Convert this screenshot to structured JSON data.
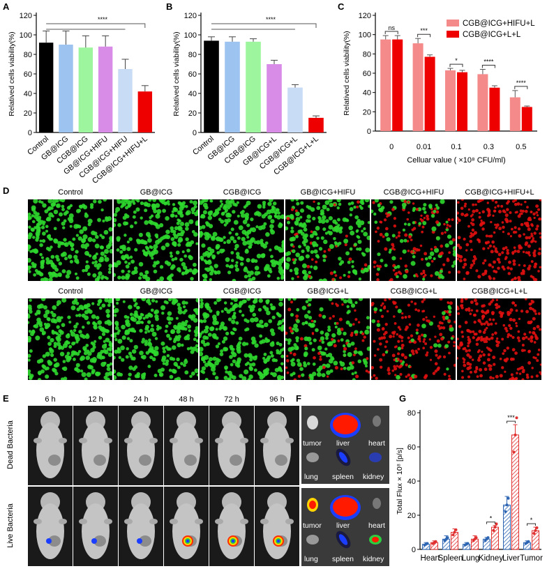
{
  "panel_labels": {
    "a": "A",
    "b": "B",
    "c": "C",
    "d": "D",
    "e": "E",
    "f": "F",
    "g": "G"
  },
  "chart_data": [
    {
      "id": "A",
      "type": "bar",
      "ylabel": "Relatived cells viability(%)",
      "ylim": [
        0,
        120
      ],
      "yticks": [
        "0",
        "20",
        "40",
        "60",
        "80",
        "100",
        "120"
      ],
      "categories": [
        "Control",
        "GB@ICG",
        "CGB@ICG",
        "GB@ICG+HIFU",
        "CGB@ICG+HIFU",
        "CGB@ICG+HIFU+L"
      ],
      "values": [
        92,
        90,
        87,
        88,
        65,
        42
      ],
      "errors": [
        12,
        14,
        12,
        11,
        10,
        6
      ],
      "colors": [
        "#000000",
        "#9dc3f0",
        "#9df59d",
        "#d98be8",
        "#c8dcf5",
        "#ee0000"
      ],
      "significance": {
        "label": "****",
        "from": 0,
        "to": 5
      }
    },
    {
      "id": "B",
      "type": "bar",
      "ylabel": "Relatived cells viability(%)",
      "ylim": [
        0,
        120
      ],
      "yticks": [
        "0",
        "20",
        "40",
        "60",
        "80",
        "100",
        "120"
      ],
      "categories": [
        "Control",
        "GB@ICG",
        "CGB@ICG",
        "GB@ICG+L",
        "CGB@ICG+L",
        "CGB@ICG+L+L"
      ],
      "values": [
        94,
        93,
        93,
        70,
        46,
        15
      ],
      "errors": [
        4,
        5,
        3,
        4,
        3,
        2
      ],
      "colors": [
        "#000000",
        "#9dc3f0",
        "#9df59d",
        "#d98be8",
        "#c8dcf5",
        "#ee0000"
      ],
      "significance": {
        "label": "****",
        "from": 0,
        "to": 5
      }
    },
    {
      "id": "C",
      "type": "bar",
      "ylabel": "Relatived cells viability(%)",
      "xlabel": "Celluar value ( ×10⁸ CFU/ml)",
      "ylim": [
        0,
        120
      ],
      "yticks": [
        "0",
        "20",
        "40",
        "60",
        "80",
        "100",
        "120"
      ],
      "categories": [
        "0",
        "0.01",
        "0.1",
        "0.3",
        "0.5"
      ],
      "series": [
        {
          "name": "CGB@ICG+HIFU+L",
          "color": "#f48a8a",
          "values": [
            95,
            91,
            63,
            59,
            35
          ],
          "errors": [
            4,
            5,
            2,
            5,
            7
          ]
        },
        {
          "name": "CGB@ICG+L+L",
          "color": "#ee0000",
          "values": [
            95,
            77,
            61,
            45,
            25
          ],
          "errors": [
            4,
            2,
            2,
            2,
            1
          ]
        }
      ],
      "significance": [
        "ns",
        "***",
        "*",
        "****",
        "****"
      ]
    },
    {
      "id": "G",
      "type": "bar",
      "ylabel": "Total Flux × 10⁸ [p/s]",
      "ylim": [
        0,
        80
      ],
      "yticks": [
        "0",
        "20",
        "40",
        "60",
        "80"
      ],
      "categories": [
        "Heart",
        "Spleen",
        "Lung",
        "Kidney",
        "Liver",
        "Tumor"
      ],
      "series": [
        {
          "color": "#2f66b3",
          "values": [
            3,
            6,
            3,
            6,
            26,
            4
          ],
          "errors": [
            1,
            2,
            1,
            1,
            5,
            1
          ]
        },
        {
          "color": "#e03030",
          "values": [
            4,
            10,
            6,
            13,
            67,
            11
          ],
          "errors": [
            1,
            2,
            2,
            1,
            6,
            2
          ]
        }
      ],
      "significance": [
        "",
        "",
        "",
        "*",
        "***",
        "*"
      ]
    }
  ],
  "panel_d": {
    "row1_labels": [
      "Control",
      "GB@ICG",
      "CGB@ICG",
      "GB@ICG+HIFU",
      "CGB@ICG+HIFU",
      "CGB@ICG+HIFU+L"
    ],
    "row2_labels": [
      "Control",
      "GB@ICG",
      "CGB@ICG",
      "GB@ICG+L",
      "CGB@ICG+L",
      "CGB@ICG+L+L"
    ],
    "row1_red_fraction": [
      0.0,
      0.0,
      0.0,
      0.15,
      0.45,
      1.0
    ],
    "row2_red_fraction": [
      0.0,
      0.0,
      0.0,
      0.25,
      0.7,
      1.0
    ],
    "live_color": "#2ed82e",
    "dead_color": "#e01010"
  },
  "panel_e": {
    "times": [
      "6 h",
      "12 h",
      "24 h",
      "48 h",
      "72 h",
      "96 h"
    ],
    "row_labels": [
      "Dead Bacteria",
      "Live Bacteria"
    ]
  },
  "panel_f": {
    "organs_top": [
      "tumor",
      "liver",
      "heart",
      "lung",
      "spleen",
      "kidney"
    ],
    "organs_bottom": [
      "tumor",
      "liver",
      "heart",
      "lung",
      "spleen",
      "kidney"
    ]
  }
}
